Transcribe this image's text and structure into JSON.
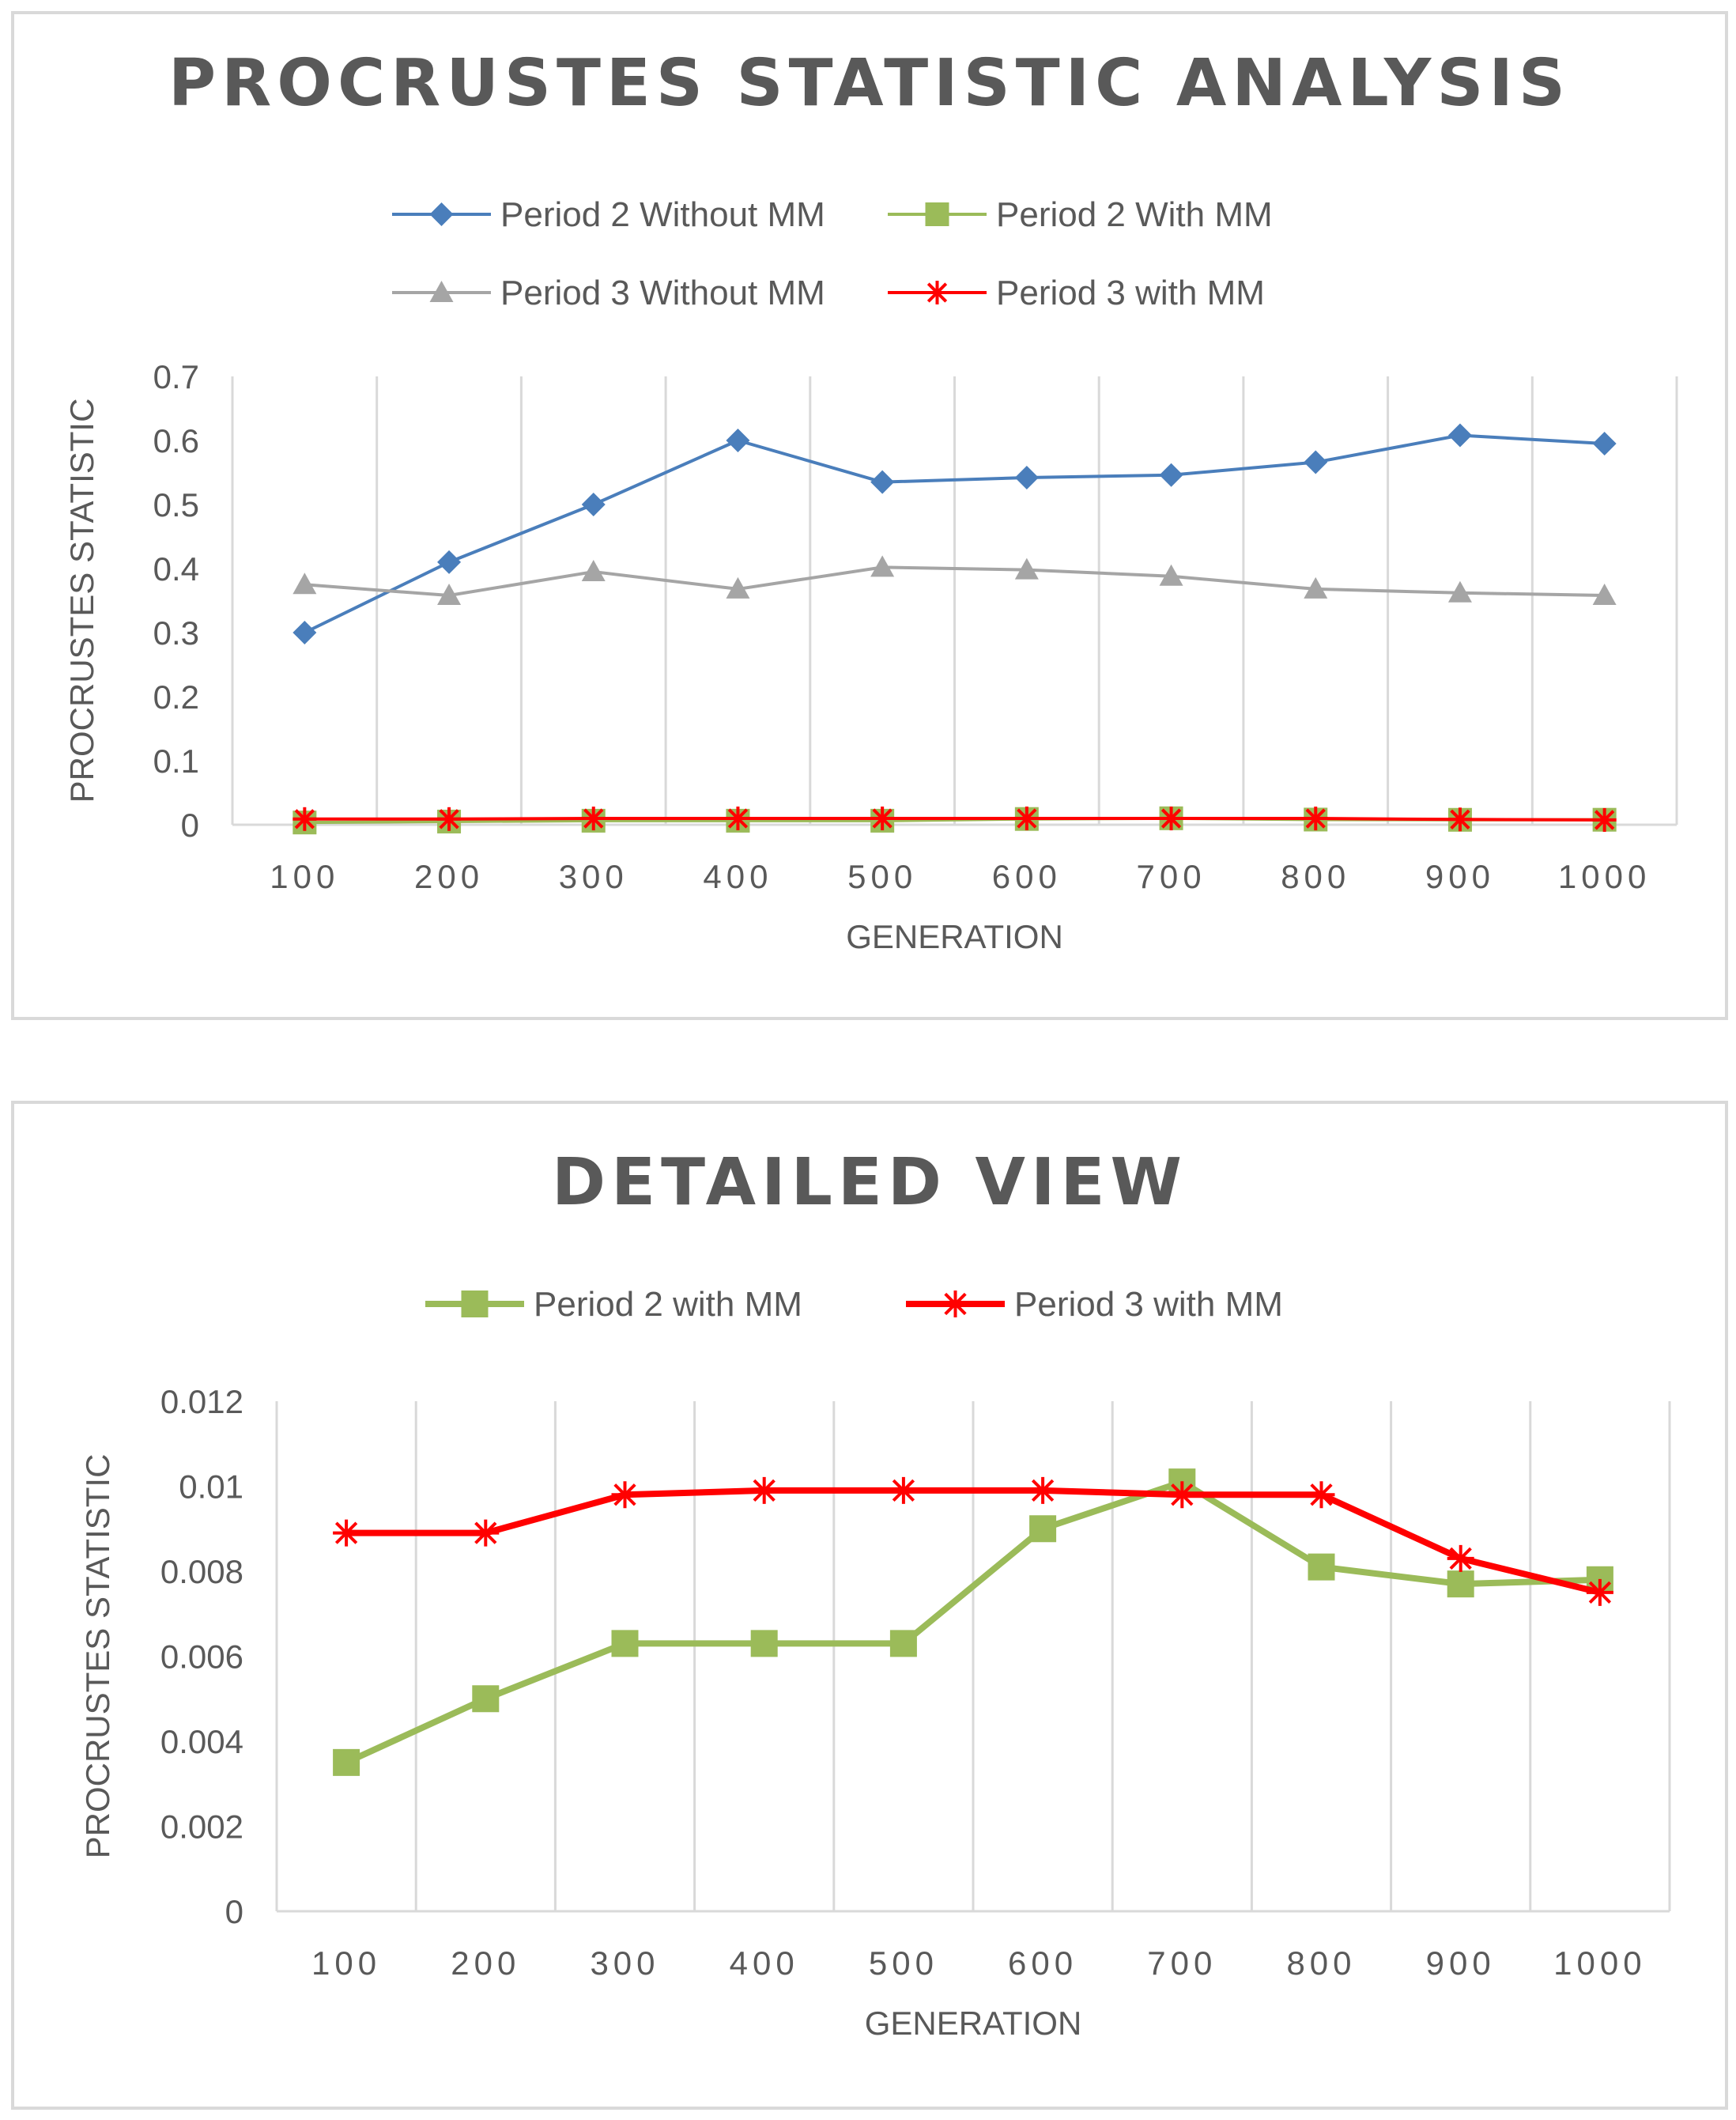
{
  "chart_data": [
    {
      "type": "line",
      "title": "PROCRUSTES  STATISTIC  ANALYSIS",
      "xlabel": "GENERATION",
      "ylabel": "PROCRUSTES STATISTIC",
      "categories": [
        "100",
        "200",
        "300",
        "400",
        "500",
        "600",
        "700",
        "800",
        "900",
        "1000"
      ],
      "ylim": [
        0,
        0.7
      ],
      "yticks": [
        "0",
        "0.1",
        "0.2",
        "0.3",
        "0.4",
        "0.5",
        "0.6",
        "0.7"
      ],
      "legend_position": "top",
      "grid": "vertical",
      "series": [
        {
          "name": "Period 2 Without MM",
          "color": "#4a7ebb",
          "marker": "diamond",
          "values": [
            0.3,
            0.41,
            0.5,
            0.6,
            0.535,
            0.542,
            0.546,
            0.566,
            0.608,
            0.595
          ]
        },
        {
          "name": "Period 2 With MM",
          "color": "#9bbb59",
          "marker": "square",
          "values": [
            0.0035,
            0.005,
            0.0063,
            0.0063,
            0.0063,
            0.009,
            0.0101,
            0.0081,
            0.0077,
            0.0078
          ]
        },
        {
          "name": "Period 3 Without MM",
          "color": "#a5a5a5",
          "marker": "triangle",
          "values": [
            0.375,
            0.358,
            0.395,
            0.368,
            0.402,
            0.398,
            0.388,
            0.368,
            0.362,
            0.358
          ]
        },
        {
          "name": "Period 3 with MM",
          "color": "#ff0000",
          "marker": "star",
          "values": [
            0.0089,
            0.0089,
            0.0098,
            0.0099,
            0.0099,
            0.0099,
            0.0098,
            0.0098,
            0.0083,
            0.0075
          ]
        }
      ]
    },
    {
      "type": "line",
      "title": "DETAILED  VIEW",
      "xlabel": "GENERATION",
      "ylabel": "PROCRUSTES STATISTIC",
      "categories": [
        "100",
        "200",
        "300",
        "400",
        "500",
        "600",
        "700",
        "800",
        "900",
        "1000"
      ],
      "ylim": [
        0,
        0.012
      ],
      "yticks": [
        "0",
        "0.002",
        "0.004",
        "0.006",
        "0.008",
        "0.01",
        "0.012"
      ],
      "legend_position": "top",
      "grid": "vertical",
      "series": [
        {
          "name": "Period 2 with MM",
          "color": "#9bbb59",
          "marker": "square",
          "values": [
            0.0035,
            0.005,
            0.0063,
            0.0063,
            0.0063,
            0.009,
            0.0101,
            0.0081,
            0.0077,
            0.0078
          ]
        },
        {
          "name": "Period 3 with MM",
          "color": "#ff0000",
          "marker": "star",
          "values": [
            0.0089,
            0.0089,
            0.0098,
            0.0099,
            0.0099,
            0.0099,
            0.0098,
            0.0098,
            0.0083,
            0.0075
          ]
        }
      ]
    }
  ]
}
